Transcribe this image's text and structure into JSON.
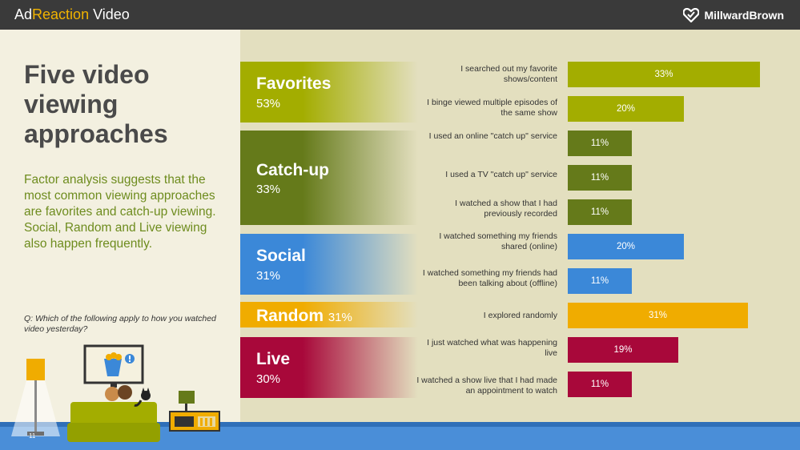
{
  "header": {
    "brand_left_part1": "Ad",
    "brand_left_part2": "Reaction",
    "brand_left_part3": " Video",
    "brand_right": "MillwardBrown"
  },
  "left": {
    "title": "Five video viewing approaches",
    "description": "Factor analysis suggests that the most common viewing approaches are favorites and catch-up viewing. Social, Random and Live viewing also happen frequently.",
    "question": "Q: Which of the following apply to how you watched video yesterday?",
    "page_number": "11"
  },
  "colors": {
    "favorites": "#a3ad00",
    "catchup": "#657a1a",
    "social": "#3b88d8",
    "random": "#f0ac00",
    "live": "#a8083a"
  },
  "chart_data": {
    "type": "bar",
    "orientation": "horizontal",
    "groups": [
      {
        "name": "Favorites",
        "pct": "53%",
        "color": "#a3ad00"
      },
      {
        "name": "Catch-up",
        "pct": "33%",
        "color": "#657a1a"
      },
      {
        "name": "Social",
        "pct": "31%",
        "color": "#3b88d8"
      },
      {
        "name": "Random",
        "pct": "31%",
        "color": "#f0ac00"
      },
      {
        "name": "Live",
        "pct": "30%",
        "color": "#a8083a"
      }
    ],
    "items": [
      {
        "label": "I searched out my favorite shows/content",
        "value": 33,
        "display": "33%",
        "group": 0
      },
      {
        "label": "I binge viewed multiple episodes of the same show",
        "value": 20,
        "display": "20%",
        "group": 0
      },
      {
        "label": "I used an online \"catch up\" service",
        "value": 11,
        "display": "11%",
        "group": 1
      },
      {
        "label": "I used a TV \"catch up\" service",
        "value": 11,
        "display": "11%",
        "group": 1
      },
      {
        "label": "I watched a show that I had previously recorded",
        "value": 11,
        "display": "11%",
        "group": 1
      },
      {
        "label": "I watched something my friends shared (online)",
        "value": 20,
        "display": "20%",
        "group": 2
      },
      {
        "label": "I watched something my friends had been talking about (offline)",
        "value": 11,
        "display": "11%",
        "group": 2
      },
      {
        "label": "I explored randomly",
        "value": 31,
        "display": "31%",
        "group": 3
      },
      {
        "label": "I just watched what was happening live",
        "value": 19,
        "display": "19%",
        "group": 4
      },
      {
        "label": "I watched a show live that I had made an appointment to watch",
        "value": 11,
        "display": "11%",
        "group": 4
      }
    ],
    "xlim": [
      0,
      33
    ]
  }
}
